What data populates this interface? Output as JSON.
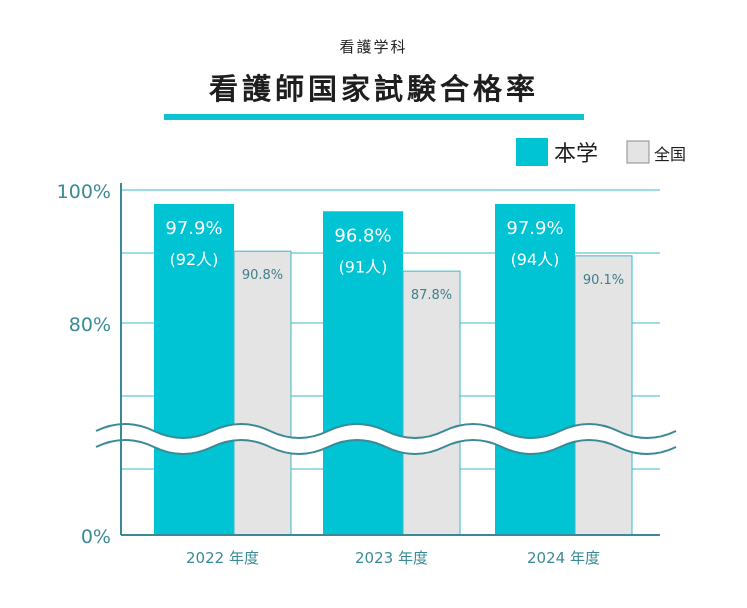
{
  "header": {
    "subtitle": "看護学科",
    "title": "看護師国家試験合格率"
  },
  "legend": {
    "items": [
      {
        "label": "本学",
        "color": "#00c4d4"
      },
      {
        "label": "全国",
        "color": "#e4e4e4"
      }
    ]
  },
  "colors": {
    "accent": "#00c4d4",
    "national": "#e4e4e4",
    "axis": "#3a8a96",
    "grid": "#3ab8c8"
  },
  "chart_data": {
    "type": "bar",
    "categories": [
      "2022 年度",
      "2023 年度",
      "2024 年度"
    ],
    "series": [
      {
        "name": "本学",
        "values": [
          97.9,
          96.8,
          97.9
        ],
        "labels": [
          "97.9%",
          "96.8%",
          "97.9%"
        ],
        "sublabels": [
          "(92人)",
          "(91人)",
          "(94人)"
        ]
      },
      {
        "name": "全国",
        "values": [
          90.8,
          87.8,
          90.1
        ],
        "labels": [
          "90.8%",
          "87.8%",
          "90.1%"
        ]
      }
    ],
    "yticks": [
      "100%",
      "80%",
      "0%"
    ],
    "axis_break": true,
    "grid": true,
    "legend_position": "top-right"
  }
}
